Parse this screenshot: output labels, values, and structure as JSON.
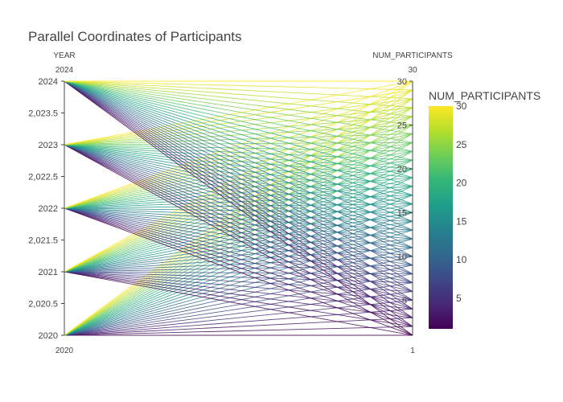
{
  "chart_data": {
    "type": "parallel_coordinates",
    "title": "Parallel Coordinates of Participants",
    "dimensions": [
      {
        "label": "YEAR",
        "range": [
          2020,
          2024
        ],
        "range_min_label": "2020",
        "range_max_label": "2024",
        "ticks": [
          {
            "value": 2020,
            "label": "2020"
          },
          {
            "value": 2020.5,
            "label": "2,020.5"
          },
          {
            "value": 2021,
            "label": "2021"
          },
          {
            "value": 2021.5,
            "label": "2,021.5"
          },
          {
            "value": 2022,
            "label": "2022"
          },
          {
            "value": 2022.5,
            "label": "2,022.5"
          },
          {
            "value": 2023,
            "label": "2023"
          },
          {
            "value": 2023.5,
            "label": "2,023.5"
          },
          {
            "value": 2024,
            "label": "2024"
          }
        ]
      },
      {
        "label": "NUM_PARTICIPANTS",
        "range": [
          1,
          30
        ],
        "range_min_label": "1",
        "range_max_label": "30",
        "ticks": [
          {
            "value": 5,
            "label": "5"
          },
          {
            "value": 10,
            "label": "10"
          },
          {
            "value": 15,
            "label": "15"
          },
          {
            "value": 20,
            "label": "20"
          },
          {
            "value": 25,
            "label": "25"
          },
          {
            "value": 30,
            "label": "30"
          }
        ]
      }
    ],
    "lines": {
      "years": [
        2020,
        2021,
        2022,
        2023,
        2024
      ],
      "participants_min": 1,
      "participants_max": 30
    },
    "colorscale": "Viridis",
    "colorscale_colors": [
      "#440154",
      "#482878",
      "#3e4989",
      "#31688e",
      "#26828e",
      "#1f9e89",
      "#35b779",
      "#6ece58",
      "#b5de2b",
      "#fde725"
    ],
    "colorbar": {
      "title": "NUM_PARTICIPANTS",
      "range": [
        1,
        30
      ],
      "ticks": [
        5,
        10,
        15,
        20,
        25,
        30
      ]
    }
  }
}
